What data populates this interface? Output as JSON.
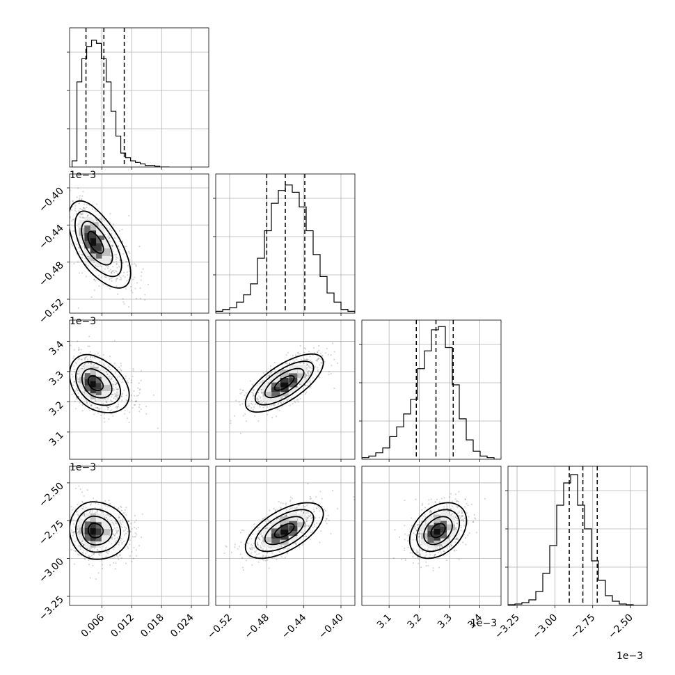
{
  "chart_data": {
    "type": "corner",
    "n_params": 4,
    "grid": true,
    "params": [
      {
        "range": [
          -0.0005,
          0.0275
        ],
        "offset": ""
      },
      {
        "range": [
          -0.000535,
          -0.000385
        ],
        "offset": "1e−3"
      },
      {
        "range": [
          0.00301,
          0.00347
        ],
        "offset": "1e−3"
      },
      {
        "range": [
          -0.00331,
          -0.00239
        ],
        "offset": "1e−3"
      }
    ],
    "x_ticks": [
      [
        {
          "v": 0.006,
          "label": "0.006"
        },
        {
          "v": 0.012,
          "label": "0.012"
        },
        {
          "v": 0.018,
          "label": "0.018"
        },
        {
          "v": 0.024,
          "label": "0.024"
        }
      ],
      [
        {
          "v": -0.00052,
          "label": "−0.52"
        },
        {
          "v": -0.00048,
          "label": "−0.48"
        },
        {
          "v": -0.00044,
          "label": "−0.44"
        },
        {
          "v": -0.0004,
          "label": "−0.40"
        }
      ],
      [
        {
          "v": 0.0031,
          "label": "3.1"
        },
        {
          "v": 0.0032,
          "label": "3.2"
        },
        {
          "v": 0.0033,
          "label": "3.3"
        },
        {
          "v": 0.0034,
          "label": "3.4"
        }
      ],
      [
        {
          "v": -0.00325,
          "label": "−3.25"
        },
        {
          "v": -0.003,
          "label": "−3.00"
        },
        {
          "v": -0.00275,
          "label": "−2.75"
        },
        {
          "v": -0.0025,
          "label": "−2.50"
        }
      ]
    ],
    "y_ticks": [
      null,
      [
        {
          "v": -0.0004,
          "label": "−0.40"
        },
        {
          "v": -0.00044,
          "label": "−0.44"
        },
        {
          "v": -0.00048,
          "label": "−0.48"
        },
        {
          "v": -0.00052,
          "label": "−0.52"
        }
      ],
      [
        {
          "v": 0.0034,
          "label": "3.4"
        },
        {
          "v": 0.0033,
          "label": "3.3"
        },
        {
          "v": 0.0032,
          "label": "3.2"
        },
        {
          "v": 0.0031,
          "label": "3.1"
        }
      ],
      [
        {
          "v": -0.0025,
          "label": "−2.50"
        },
        {
          "v": -0.00275,
          "label": "−2.75"
        },
        {
          "v": -0.003,
          "label": "−3.00"
        },
        {
          "v": -0.00325,
          "label": "−3.25"
        }
      ]
    ],
    "histograms": [
      {
        "edges_start": 0.0,
        "bin_width": 0.00098,
        "counts": [
          4,
          55,
          70,
          78,
          82,
          80,
          70,
          55,
          36,
          20,
          9,
          6,
          4,
          3,
          2,
          1,
          1,
          0.5,
          0,
          0
        ],
        "quantiles": [
          0.0028,
          0.0064,
          0.0105
        ],
        "max": 90
      },
      {
        "edges_start": -0.000535,
        "bin_width": 7.5e-06,
        "counts": [
          1,
          2,
          3,
          6,
          10,
          16,
          30,
          45,
          60,
          67,
          70,
          66,
          58,
          45,
          32,
          20,
          11,
          6,
          2,
          1
        ],
        "quantiles": [
          -0.00048,
          -0.00046,
          -0.000439
        ],
        "max": 76
      },
      {
        "edges_start": 0.00301,
        "bin_width": 2.3e-05,
        "counts": [
          1,
          2,
          4,
          7,
          14,
          20,
          28,
          37,
          56,
          67,
          80,
          82,
          69,
          46,
          25,
          12,
          5,
          2,
          1,
          0
        ],
        "quantiles": [
          0.00319,
          0.003255,
          0.003312
        ],
        "max": 86
      },
      {
        "edges_start": -0.00331,
        "bin_width": 4.6e-05,
        "counts": [
          0.5,
          1,
          2,
          4,
          10,
          23,
          43,
          72,
          88,
          94,
          72,
          55,
          32,
          18,
          7,
          3,
          1,
          0.5,
          0,
          0
        ],
        "quantiles": [
          -0.002905,
          -0.002815,
          -0.00272
        ],
        "max": 100
      }
    ],
    "joint": [
      {
        "row": 1,
        "col": 0,
        "mean": [
          0.0045,
          -0.000458
        ],
        "sd": [
          0.0026,
          2.2e-05
        ],
        "corr": -0.55
      },
      {
        "row": 2,
        "col": 0,
        "mean": [
          0.0045,
          0.003262
        ],
        "sd": [
          0.0025,
          4.7e-05
        ],
        "corr": -0.3
      },
      {
        "row": 2,
        "col": 1,
        "mean": [
          -0.000461,
          0.003262
        ],
        "sd": [
          2.1e-05,
          4.8e-05
        ],
        "corr": 0.7
      },
      {
        "row": 3,
        "col": 0,
        "mean": [
          0.0045,
          -0.002815
        ],
        "sd": [
          0.0025,
          9.5e-05
        ],
        "corr": -0.05
      },
      {
        "row": 3,
        "col": 1,
        "mean": [
          -0.000461,
          -0.002815
        ],
        "sd": [
          2.1e-05,
          9.2e-05
        ],
        "corr": 0.6
      },
      {
        "row": 3,
        "col": 2,
        "mean": [
          0.003262,
          -0.002815
        ],
        "sd": [
          4.7e-05,
          9.2e-05
        ],
        "corr": 0.35
      }
    ],
    "contour_levels": [
      0.5,
      1.0,
      1.5,
      2.0
    ]
  }
}
